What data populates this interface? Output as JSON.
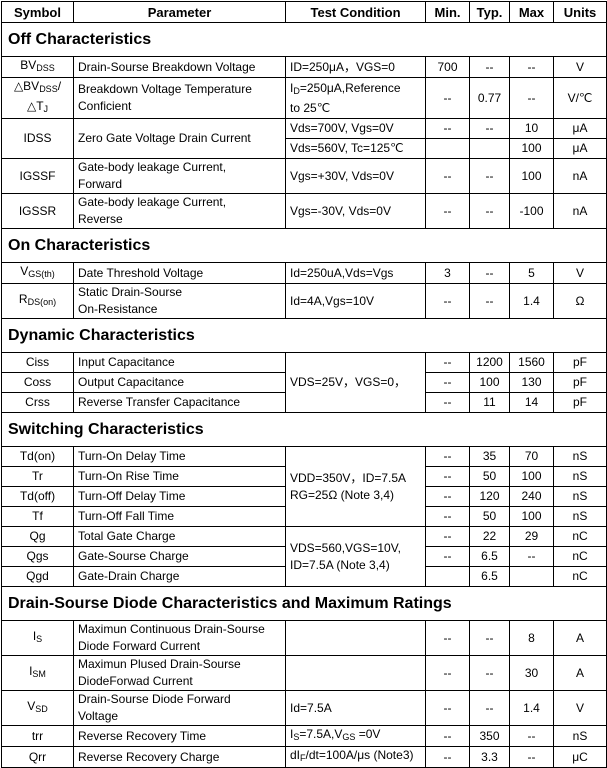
{
  "columns": [
    "Symbol",
    "Parameter",
    "Test Condition",
    "Min.",
    "Typ.",
    "Max",
    "Units"
  ],
  "sections": [
    {
      "title": "Off Characteristics",
      "rows": [
        [
          [
            "BV",
            "DSS"
          ],
          "Drain-Sourse Breakdown Voltage",
          "ID=250μA，VGS=0",
          "700",
          "--",
          "--",
          "V"
        ],
        [
          [
            "△BV",
            "DSS",
            "/△T",
            "J"
          ],
          "Breakdown Voltage Temperature\nConficient",
          [
            "I",
            "D",
            "=250μA,Reference\nto 25℃"
          ],
          "--",
          "0.77",
          "--",
          "V/℃"
        ],
        [
          {
            "text": "IDSS",
            "rowspan": 2
          },
          {
            "text": "Zero Gate Voltage Drain Current",
            "rowspan": 2
          },
          "Vds=700V, Vgs=0V",
          "--",
          "--",
          "10",
          "μA"
        ],
        [
          "Vds=560V, Tc=125℃",
          null,
          null,
          "100",
          "μA"
        ],
        [
          "IGSSF",
          "Gate-body leakage Current,\nForward",
          "Vgs=+30V, Vds=0V",
          "--",
          "--",
          "100",
          "nA"
        ],
        [
          "IGSSR",
          "Gate-body leakage Current,\nReverse",
          "Vgs=-30V, Vds=0V",
          "--",
          "--",
          "-100",
          "nA"
        ]
      ]
    },
    {
      "title": "On Characteristics",
      "rows": [
        [
          [
            "V",
            "GS(th)"
          ],
          "Date Threshold Voltage",
          "Id=250uA,Vds=Vgs",
          "3",
          "--",
          "5",
          "V"
        ],
        [
          [
            "R",
            "DS(on)"
          ],
          "Static Drain-Sourse\nOn-Resistance",
          "Id=4A,Vgs=10V",
          "--",
          "--",
          "1.4",
          "Ω"
        ]
      ]
    },
    {
      "title": "Dynamic Characteristics",
      "rows": [
        [
          "Ciss",
          "Input Capacitance",
          {
            "text": "VDS=25V，VGS=0，",
            "rowspan": 3
          },
          "--",
          "1200",
          "1560",
          "pF"
        ],
        [
          "Coss",
          "Output Capacitance",
          "--",
          "100",
          "130",
          "pF"
        ],
        [
          "Crss",
          "Reverse Transfer Capacitance",
          "--",
          "11",
          "14",
          "pF"
        ]
      ]
    },
    {
      "title": "Switching Characteristics",
      "rows": [
        [
          "Td(on)",
          "Turn-On Delay Time",
          {
            "text": "VDD=350V，ID=7.5A\nRG=25Ω (Note 3,4)",
            "rowspan": 4
          },
          "--",
          "35",
          "70",
          "nS"
        ],
        [
          "Tr",
          "Turn-On Rise Time",
          "--",
          "50",
          "100",
          "nS"
        ],
        [
          "Td(off)",
          "Turn-Off Delay Time",
          "--",
          "120",
          "240",
          "nS"
        ],
        [
          "Tf",
          "Turn-Off Fall Time",
          "--",
          "50",
          "100",
          "nS"
        ],
        [
          "Qg",
          "Total Gate Charge",
          {
            "text": "VDS=560,VGS=10V,\nID=7.5A (Note 3,4)",
            "rowspan": 3
          },
          "--",
          "22",
          "29",
          "nC"
        ],
        [
          "Qgs",
          "Gate-Sourse Charge",
          "--",
          "6.5",
          "--",
          "nC"
        ],
        [
          "Qgd",
          "Gate-Drain Charge",
          null,
          "6.5",
          null,
          "nC"
        ]
      ]
    },
    {
      "title": "Drain-Sourse Diode Characteristics and Maximum Ratings",
      "rows": [
        [
          [
            "I",
            "S"
          ],
          "Maximun Continuous Drain-Sourse Diode Forward Current",
          null,
          "--",
          "--",
          "8",
          "A"
        ],
        [
          [
            "I",
            "SM"
          ],
          "Maximun Plused Drain-Sourse DiodeForwad Current",
          null,
          "--",
          "--",
          "30",
          "A"
        ],
        [
          [
            "V",
            "SD"
          ],
          "Drain-Sourse Diode Forward\nVoltage",
          "Id=7.5A",
          "--",
          "--",
          "1.4",
          "V"
        ],
        [
          "trr",
          "Reverse Recovery Time",
          [
            "I",
            "S",
            "=7.5A,V",
            "GS",
            " =0V"
          ],
          "--",
          "350",
          "--",
          "nS"
        ],
        [
          "Qrr",
          "Reverse Recovery Charge",
          [
            "dI",
            "F",
            "/dt=100A/μs (Note3)"
          ],
          "--",
          "3.3",
          "--",
          "μC"
        ]
      ]
    }
  ]
}
